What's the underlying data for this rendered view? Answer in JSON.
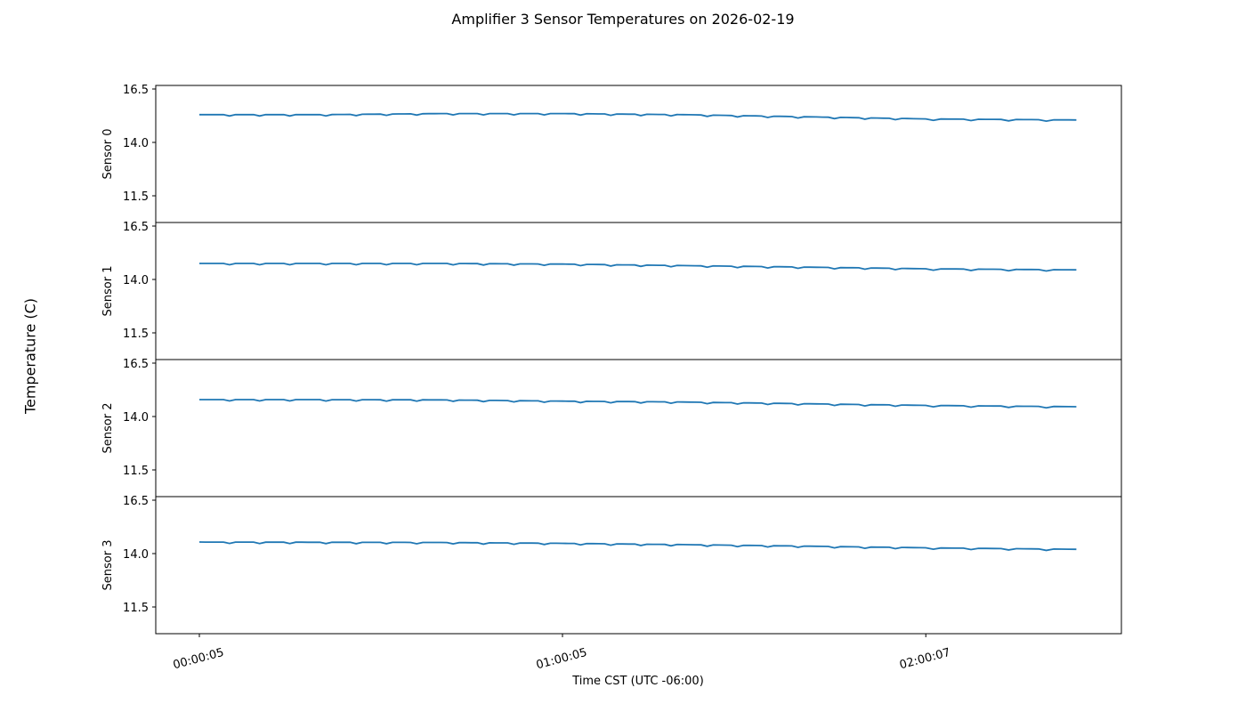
{
  "figure": {
    "title": "Amplifier 3 Sensor Temperatures on 2026-02-19",
    "ylabel": "Temperature (C)",
    "xlabel": "Time CST (UTC -06:00)",
    "line_color": "#1f77b4"
  },
  "chart_data": [
    {
      "type": "line",
      "title": "Amplifier 3 Sensor Temperatures on 2026-02-19",
      "panel": "Sensor 0",
      "ylabel": "Sensor 0",
      "xlabel": "Time CST (UTC -06:00)",
      "x_tick_labels": [
        "00:00:05",
        "01:00:05",
        "02:00:07"
      ],
      "y_tick_labels": [
        "11.5",
        "14.0",
        "16.5"
      ],
      "ylim": [
        10.8,
        16.7
      ],
      "grid": false,
      "x": [
        "00:00:05",
        "00:20:00",
        "00:40:00",
        "01:00:05",
        "01:20:00",
        "01:40:00",
        "02:00:07",
        "02:25:00"
      ],
      "values": [
        15.3,
        15.3,
        15.35,
        15.35,
        15.3,
        15.2,
        15.1,
        15.05
      ]
    },
    {
      "type": "line",
      "panel": "Sensor 1",
      "ylabel": "Sensor 1",
      "x_tick_labels": [
        "00:00:05",
        "01:00:05",
        "02:00:07"
      ],
      "y_tick_labels": [
        "11.5",
        "14.0",
        "16.5"
      ],
      "ylim": [
        10.8,
        16.7
      ],
      "grid": false,
      "x": [
        "00:00:05",
        "00:20:00",
        "00:40:00",
        "01:00:05",
        "01:20:00",
        "01:40:00",
        "02:00:07",
        "02:25:00"
      ],
      "values": [
        14.75,
        14.75,
        14.75,
        14.72,
        14.65,
        14.58,
        14.5,
        14.45
      ]
    },
    {
      "type": "line",
      "panel": "Sensor 2",
      "ylabel": "Sensor 2",
      "x_tick_labels": [
        "00:00:05",
        "01:00:05",
        "02:00:07"
      ],
      "y_tick_labels": [
        "11.5",
        "14.0",
        "16.5"
      ],
      "ylim": [
        10.8,
        16.7
      ],
      "grid": false,
      "x": [
        "00:00:05",
        "00:20:00",
        "00:40:00",
        "01:00:05",
        "01:20:00",
        "01:40:00",
        "02:00:07",
        "02:25:00"
      ],
      "values": [
        14.79,
        14.79,
        14.78,
        14.72,
        14.68,
        14.6,
        14.52,
        14.46
      ]
    },
    {
      "type": "line",
      "panel": "Sensor 3",
      "ylabel": "Sensor 3",
      "x_tick_labels": [
        "00:00:05",
        "01:00:05",
        "02:00:07"
      ],
      "y_tick_labels": [
        "11.5",
        "14.0",
        "16.5"
      ],
      "ylim": [
        10.8,
        16.7
      ],
      "grid": false,
      "x": [
        "00:00:05",
        "00:20:00",
        "00:40:00",
        "01:00:05",
        "01:20:00",
        "01:40:00",
        "02:00:07",
        "02:25:00"
      ],
      "values": [
        14.54,
        14.53,
        14.52,
        14.48,
        14.42,
        14.35,
        14.27,
        14.2
      ]
    }
  ]
}
